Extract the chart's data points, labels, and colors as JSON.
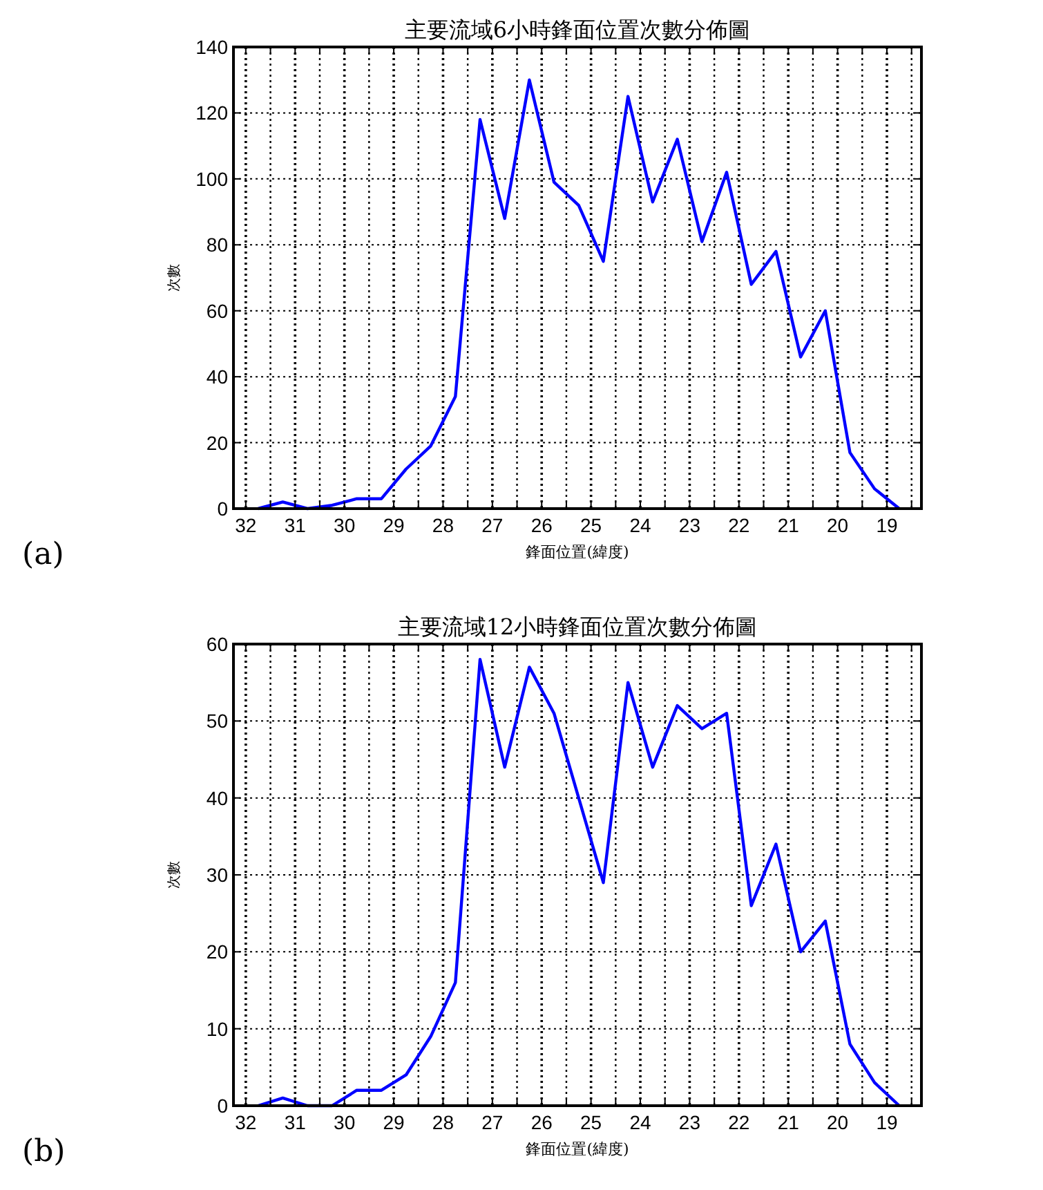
{
  "chart_data": [
    {
      "type": "line",
      "title": "主要流域6小時鋒面位置次數分佈圖",
      "xlabel": "鋒面位置(緯度)",
      "ylabel": "次數",
      "annotations": [
        "(a)"
      ],
      "x": [
        31.75,
        31.25,
        30.75,
        30.25,
        29.75,
        29.25,
        28.75,
        28.25,
        27.75,
        27.25,
        26.75,
        26.25,
        25.75,
        25.25,
        24.75,
        24.25,
        23.75,
        23.25,
        22.75,
        22.25,
        21.75,
        21.25,
        20.75,
        20.25,
        19.75,
        19.25,
        18.75
      ],
      "series": [
        {
          "color": "#0000ff",
          "values": [
            0,
            2,
            0,
            1,
            3,
            3,
            12,
            19,
            34,
            118,
            88,
            130,
            99,
            92,
            75,
            125,
            93,
            112,
            81,
            102,
            68,
            78,
            46,
            60,
            17,
            6,
            0
          ]
        }
      ],
      "xlim": [
        32.25,
        18.3
      ],
      "xticks": [
        32,
        {
          "value": 31.5,
          "label": null
        },
        31,
        {
          "value": 30.5,
          "label": null
        },
        30,
        {
          "value": 29.5,
          "label": null
        },
        29,
        {
          "value": 28.5,
          "label": null
        },
        28,
        {
          "value": 27.5,
          "label": null
        },
        27,
        {
          "value": 26.5,
          "label": null
        },
        26,
        {
          "value": 25.5,
          "label": null
        },
        25,
        {
          "value": 24.5,
          "label": null
        },
        24,
        {
          "value": 23.5,
          "label": null
        },
        23,
        {
          "value": 22.5,
          "label": null
        },
        22,
        {
          "value": 21.5,
          "label": null
        },
        21,
        {
          "value": 20.5,
          "label": null
        },
        20,
        {
          "value": 19.5,
          "label": null
        },
        19,
        {
          "value": 18.5,
          "label": null
        }
      ],
      "ylim": [
        0,
        140
      ],
      "yticks": [
        0,
        20,
        40,
        60,
        80,
        100,
        120,
        140
      ],
      "grid": true,
      "marker": "none",
      "line_style": "solid"
    },
    {
      "type": "line",
      "title": "主要流域12小時鋒面位置次數分佈圖",
      "xlabel": "鋒面位置(緯度)",
      "ylabel": "次數",
      "annotations": [
        "(b)"
      ],
      "x": [
        31.75,
        31.25,
        30.75,
        30.25,
        29.75,
        29.25,
        28.75,
        28.25,
        27.75,
        27.25,
        26.75,
        26.25,
        25.75,
        25.25,
        24.75,
        24.25,
        23.75,
        23.25,
        22.75,
        22.25,
        21.75,
        21.25,
        20.75,
        20.25,
        19.75,
        19.25,
        18.75
      ],
      "series": [
        {
          "color": "#0000ff",
          "values": [
            0,
            1,
            0,
            0,
            2,
            2,
            4,
            9,
            16,
            58,
            44,
            57,
            51,
            40,
            29,
            55,
            44,
            52,
            49,
            51,
            26,
            34,
            20,
            24,
            8,
            3,
            0
          ]
        }
      ],
      "xlim": [
        32.25,
        18.3
      ],
      "xticks": [
        32,
        {
          "value": 31.5,
          "label": null
        },
        31,
        {
          "value": 30.5,
          "label": null
        },
        30,
        {
          "value": 29.5,
          "label": null
        },
        29,
        {
          "value": 28.5,
          "label": null
        },
        28,
        {
          "value": 27.5,
          "label": null
        },
        27,
        {
          "value": 26.5,
          "label": null
        },
        26,
        {
          "value": 25.5,
          "label": null
        },
        25,
        {
          "value": 24.5,
          "label": null
        },
        24,
        {
          "value": 23.5,
          "label": null
        },
        23,
        {
          "value": 22.5,
          "label": null
        },
        22,
        {
          "value": 21.5,
          "label": null
        },
        21,
        {
          "value": 20.5,
          "label": null
        },
        20,
        {
          "value": 19.5,
          "label": null
        },
        19,
        {
          "value": 18.5,
          "label": null
        }
      ],
      "ylim": [
        0,
        60
      ],
      "yticks": [
        0,
        10,
        20,
        30,
        40,
        50,
        60
      ],
      "grid": true,
      "marker": "none",
      "line_style": "solid"
    }
  ]
}
